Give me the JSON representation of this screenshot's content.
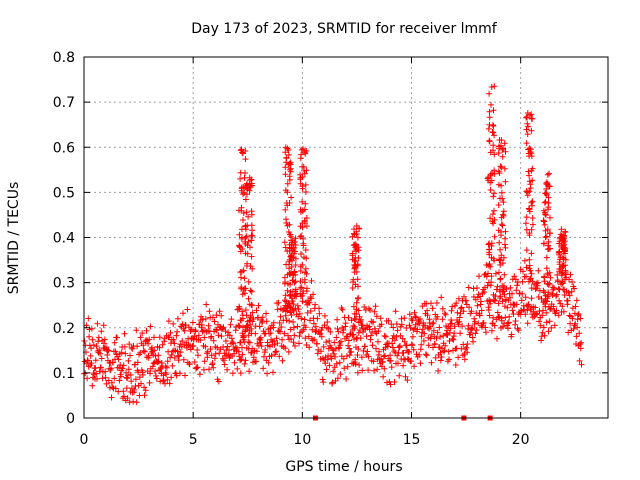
{
  "chart_data": {
    "type": "scatter",
    "title": "Day 173 of 2023, SRMTID for receiver lmmf",
    "xlabel": "GPS time / hours",
    "ylabel": "SRMTID / TECUs",
    "xlim": [
      0,
      24
    ],
    "ylim": [
      0,
      0.8
    ],
    "x_ticks": [
      0,
      5,
      10,
      15,
      20
    ],
    "x_tick_labels": [
      "0",
      "5",
      "10",
      "15",
      "20"
    ],
    "y_ticks": [
      0,
      0.1,
      0.2,
      0.3,
      0.4,
      0.5,
      0.6,
      0.7,
      0.8
    ],
    "y_tick_labels": [
      "0",
      "0.1",
      "0.2",
      "0.3",
      "0.4",
      "0.5",
      "0.6",
      "0.7",
      "0.8"
    ],
    "grid": true,
    "marker": "+",
    "series": [
      {
        "name": "SRMTID",
        "color": "#ff0000",
        "baseline": [
          [
            0.0,
            0.15
          ],
          [
            0.5,
            0.14
          ],
          [
            1.0,
            0.12
          ],
          [
            1.5,
            0.1
          ],
          [
            2.0,
            0.1
          ],
          [
            2.5,
            0.11
          ],
          [
            3.0,
            0.12
          ],
          [
            3.5,
            0.13
          ],
          [
            4.0,
            0.15
          ],
          [
            4.5,
            0.16
          ],
          [
            5.0,
            0.17
          ],
          [
            5.5,
            0.18
          ],
          [
            6.0,
            0.17
          ],
          [
            6.5,
            0.15
          ],
          [
            7.0,
            0.16
          ],
          [
            7.5,
            0.17
          ],
          [
            8.0,
            0.18
          ],
          [
            8.5,
            0.16
          ],
          [
            9.0,
            0.19
          ],
          [
            9.5,
            0.22
          ],
          [
            10.0,
            0.24
          ],
          [
            10.5,
            0.22
          ],
          [
            11.0,
            0.16
          ],
          [
            11.5,
            0.15
          ],
          [
            12.0,
            0.17
          ],
          [
            12.5,
            0.18
          ],
          [
            13.0,
            0.17
          ],
          [
            13.5,
            0.16
          ],
          [
            14.0,
            0.15
          ],
          [
            14.5,
            0.16
          ],
          [
            15.0,
            0.17
          ],
          [
            15.5,
            0.19
          ],
          [
            16.0,
            0.18
          ],
          [
            16.5,
            0.18
          ],
          [
            17.0,
            0.19
          ],
          [
            17.5,
            0.21
          ],
          [
            18.0,
            0.24
          ],
          [
            18.5,
            0.26
          ],
          [
            19.0,
            0.24
          ],
          [
            19.5,
            0.24
          ],
          [
            20.0,
            0.27
          ],
          [
            20.5,
            0.26
          ],
          [
            21.0,
            0.25
          ],
          [
            21.5,
            0.27
          ],
          [
            22.0,
            0.3
          ],
          [
            22.5,
            0.22
          ],
          [
            22.8,
            0.15
          ]
        ],
        "spikes": [
          {
            "x": 7.25,
            "peak": 0.6
          },
          {
            "x": 7.55,
            "peak": 0.54
          },
          {
            "x": 9.35,
            "peak": 0.6
          },
          {
            "x": 9.55,
            "peak": 0.4
          },
          {
            "x": 10.05,
            "peak": 0.6
          },
          {
            "x": 12.45,
            "peak": 0.43
          },
          {
            "x": 18.65,
            "peak": 0.75
          },
          {
            "x": 19.15,
            "peak": 0.63
          },
          {
            "x": 20.4,
            "peak": 0.68
          },
          {
            "x": 21.2,
            "peak": 0.55
          },
          {
            "x": 21.9,
            "peak": 0.42
          }
        ],
        "zeros": [
          10.6,
          17.4,
          18.6
        ],
        "x_end": 22.8
      }
    ]
  }
}
